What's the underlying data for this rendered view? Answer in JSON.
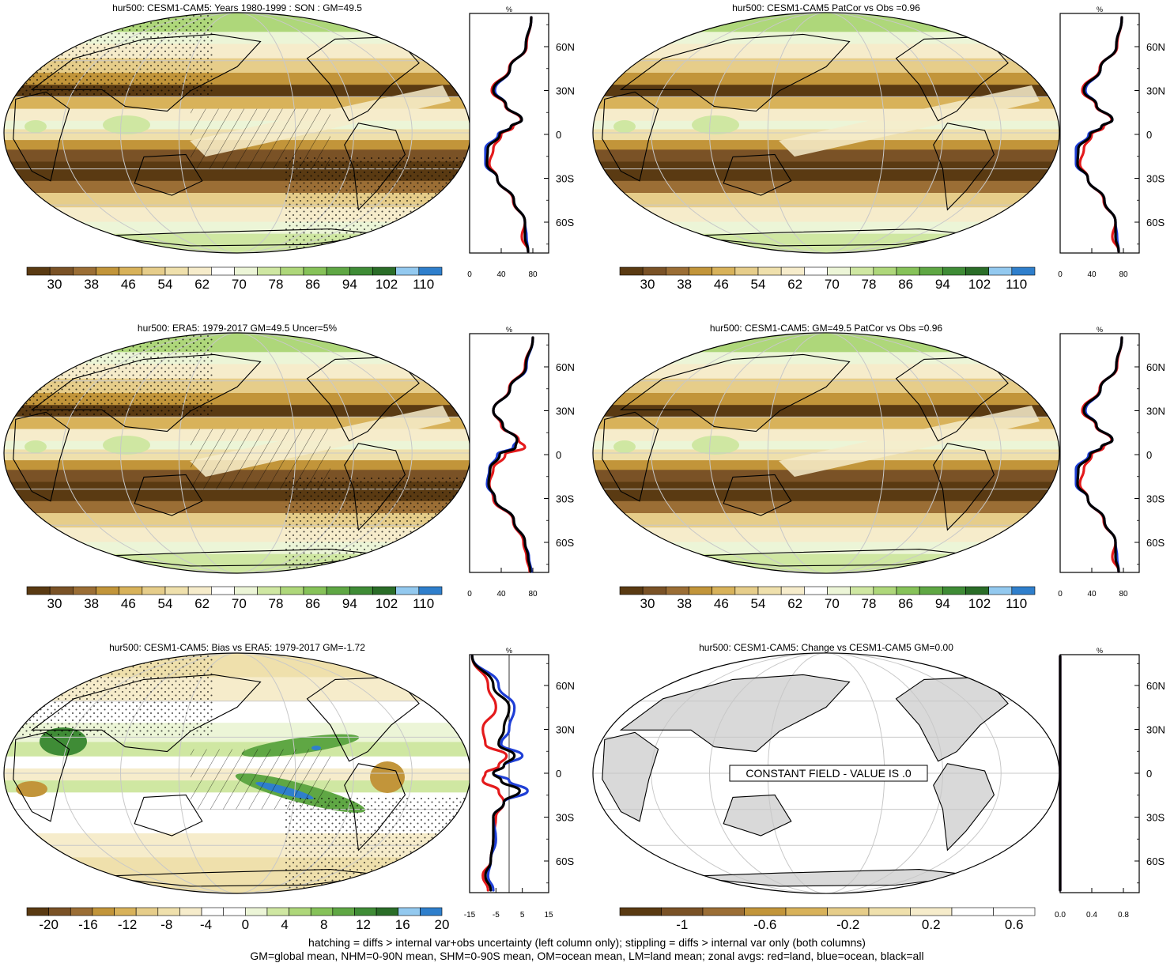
{
  "colors": {
    "abs_scale": [
      "#5a3a12",
      "#7a5226",
      "#9b6e35",
      "#c2953a",
      "#d8b25a",
      "#e6cd8a",
      "#efe0ac",
      "#f6eccb",
      "#ffffff",
      "#ecf5d7",
      "#cfe7a2",
      "#aed77a",
      "#86c259",
      "#5fa744",
      "#3f8c36",
      "#2a6d28",
      "#93c9ef",
      "#2f7fcc"
    ],
    "diff_scale": [
      "#5a3a12",
      "#7a5226",
      "#9b6e35",
      "#c2953a",
      "#d8b25a",
      "#e6cd8a",
      "#efe0ac",
      "#f6eccb",
      "#ffffff",
      "#ffffff",
      "#ecf5d7",
      "#cfe7a2",
      "#aed77a",
      "#86c259",
      "#5fa744",
      "#3f8c36",
      "#2a6d28",
      "#93c9ef",
      "#2f7fcc"
    ],
    "change_scale": [
      "#5a3a12",
      "#7a5226",
      "#9b6e35",
      "#c2953a",
      "#d8b25a",
      "#e6cd8a",
      "#efe0ac",
      "#f6eccb",
      "#ffffff",
      "#ffffff"
    ],
    "land_line": "#e41a1c",
    "ocean_line": "#1f3fd6",
    "all_line": "#000000",
    "land_fill": "#d9d9d9",
    "coast": "#000000"
  },
  "panels": [
    {
      "title": "hur500: CESM1-CAM5: Years 1980-1999 : SON : GM=49.5",
      "type": "abs",
      "colorbar_labels": [
        "30",
        "38",
        "46",
        "54",
        "62",
        "70",
        "78",
        "86",
        "94",
        "102",
        "110"
      ],
      "profile": {
        "unit": "%",
        "xticks": [
          "0",
          "40",
          "80"
        ],
        "xrange": [
          0,
          100
        ],
        "lat_labels": [
          "60N",
          "30N",
          "0",
          "30S",
          "60S"
        ]
      }
    },
    {
      "title": "hur500: CESM1-CAM5 PatCor vs Obs =0.96",
      "type": "abs",
      "colorbar_labels": [
        "30",
        "38",
        "46",
        "54",
        "62",
        "70",
        "78",
        "86",
        "94",
        "102",
        "110"
      ],
      "profile": {
        "unit": "%",
        "xticks": [
          "0",
          "40",
          "80"
        ],
        "xrange": [
          0,
          100
        ],
        "lat_labels": [
          "60N",
          "30N",
          "0",
          "30S",
          "60S"
        ]
      }
    },
    {
      "title": "hur500: ERA5: 1979-2017 GM=49.5 Uncer=5%",
      "type": "abs",
      "colorbar_labels": [
        "30",
        "38",
        "46",
        "54",
        "62",
        "70",
        "78",
        "86",
        "94",
        "102",
        "110"
      ],
      "profile": {
        "unit": "%",
        "xticks": [
          "0",
          "40",
          "80"
        ],
        "xrange": [
          0,
          100
        ],
        "lat_labels": [
          "60N",
          "30N",
          "0",
          "30S",
          "60S"
        ]
      }
    },
    {
      "title": "hur500: CESM1-CAM5: GM=49.5 PatCor vs Obs =0.96",
      "type": "abs",
      "colorbar_labels": [
        "30",
        "38",
        "46",
        "54",
        "62",
        "70",
        "78",
        "86",
        "94",
        "102",
        "110"
      ],
      "profile": {
        "unit": "%",
        "xticks": [
          "0",
          "40",
          "80"
        ],
        "xrange": [
          0,
          100
        ],
        "lat_labels": [
          "60N",
          "30N",
          "0",
          "30S",
          "60S"
        ]
      }
    },
    {
      "title": "hur500: CESM1-CAM5: Bias vs ERA5: 1979-2017  GM=-1.72",
      "type": "diff",
      "colorbar_labels": [
        "-20",
        "-16",
        "-12",
        "-8",
        "-4",
        "0",
        "4",
        "8",
        "12",
        "16",
        "20"
      ],
      "profile": {
        "unit": "%",
        "xticks": [
          "-15",
          "-5",
          "5",
          "15"
        ],
        "xrange": [
          -15,
          15
        ],
        "lat_labels": [
          "60N",
          "30N",
          "0",
          "30S",
          "60S"
        ]
      }
    },
    {
      "title": "hur500: CESM1-CAM5: Change vs CESM1-CAM5 GM=0.00",
      "type": "change",
      "annotation": "CONSTANT FIELD - VALUE IS .0",
      "colorbar_labels": [
        "-1",
        "-0.6",
        "-0.2",
        "0.2",
        "0.6"
      ],
      "profile": {
        "unit": "%",
        "xticks": [
          "0.0",
          "0.4",
          "0.8"
        ],
        "xrange": [
          0,
          1
        ],
        "lat_labels": [
          "60N",
          "30N",
          "0",
          "30S",
          "60S"
        ]
      }
    }
  ],
  "chart_data": [
    {
      "type": "line",
      "title": "hur500: CESM1-CAM5: Years 1980-1999 : SON : GM=49.5",
      "xlabel": "%",
      "xlim": [
        0,
        100
      ],
      "ylim": [
        -90,
        90
      ],
      "y_lat": [
        80,
        60,
        45,
        30,
        20,
        10,
        5,
        0,
        -10,
        -20,
        -30,
        -45,
        -60,
        -70,
        -80
      ],
      "series": [
        {
          "name": "land",
          "values": [
            78,
            72,
            50,
            28,
            45,
            65,
            55,
            40,
            30,
            25,
            35,
            55,
            70,
            66,
            74
          ]
        },
        {
          "name": "ocean",
          "values": [
            78,
            71,
            51,
            32,
            46,
            66,
            52,
            36,
            20,
            20,
            35,
            56,
            70,
            72,
            74
          ]
        },
        {
          "name": "all",
          "values": [
            78,
            71,
            51,
            30,
            46,
            66,
            52,
            38,
            23,
            22,
            35,
            56,
            70,
            70,
            74
          ]
        }
      ]
    },
    {
      "type": "line",
      "title": "hur500: CESM1-CAM5 PatCor vs Obs =0.96",
      "xlabel": "%",
      "xlim": [
        0,
        100
      ],
      "ylim": [
        -90,
        90
      ],
      "y_lat": [
        80,
        60,
        45,
        30,
        20,
        10,
        5,
        0,
        -10,
        -20,
        -30,
        -45,
        -60,
        -70,
        -80
      ],
      "series": [
        {
          "name": "land",
          "values": [
            78,
            72,
            50,
            28,
            45,
            65,
            55,
            40,
            30,
            25,
            35,
            55,
            70,
            66,
            74
          ]
        },
        {
          "name": "ocean",
          "values": [
            78,
            71,
            51,
            32,
            46,
            66,
            52,
            36,
            20,
            20,
            35,
            56,
            70,
            72,
            74
          ]
        },
        {
          "name": "all",
          "values": [
            78,
            71,
            51,
            30,
            46,
            66,
            52,
            38,
            23,
            22,
            35,
            56,
            70,
            70,
            74
          ]
        }
      ]
    },
    {
      "type": "line",
      "title": "hur500: ERA5: 1979-2017 GM=49.5 Uncer=5%",
      "xlabel": "%",
      "xlim": [
        0,
        100
      ],
      "ylim": [
        -90,
        90
      ],
      "y_lat": [
        80,
        60,
        45,
        30,
        20,
        10,
        5,
        0,
        -10,
        -20,
        -30,
        -45,
        -60,
        -70,
        -80
      ],
      "series": [
        {
          "name": "land",
          "values": [
            80,
            70,
            50,
            30,
            40,
            62,
            70,
            45,
            30,
            25,
            30,
            55,
            68,
            72,
            76
          ]
        },
        {
          "name": "ocean",
          "values": [
            80,
            72,
            51,
            30,
            42,
            60,
            55,
            35,
            25,
            22,
            32,
            56,
            70,
            75,
            78
          ]
        },
        {
          "name": "all",
          "values": [
            80,
            71,
            51,
            30,
            42,
            60,
            58,
            38,
            26,
            24,
            32,
            56,
            70,
            74,
            77
          ]
        }
      ]
    },
    {
      "type": "line",
      "title": "hur500: CESM1-CAM5: GM=49.5 PatCor vs Obs =0.96",
      "xlabel": "%",
      "xlim": [
        0,
        100
      ],
      "ylim": [
        -90,
        90
      ],
      "y_lat": [
        80,
        60,
        45,
        30,
        20,
        10,
        5,
        0,
        -10,
        -20,
        -30,
        -45,
        -60,
        -70,
        -80
      ],
      "series": [
        {
          "name": "land",
          "values": [
            78,
            72,
            50,
            28,
            45,
            65,
            55,
            40,
            30,
            25,
            35,
            55,
            70,
            66,
            74
          ]
        },
        {
          "name": "ocean",
          "values": [
            78,
            71,
            51,
            32,
            46,
            66,
            52,
            36,
            20,
            20,
            35,
            56,
            70,
            72,
            74
          ]
        },
        {
          "name": "all",
          "values": [
            78,
            71,
            51,
            30,
            46,
            66,
            52,
            38,
            23,
            22,
            35,
            56,
            70,
            70,
            74
          ]
        }
      ]
    },
    {
      "type": "line",
      "title": "hur500: CESM1-CAM5: Bias vs ERA5: 1979-2017  GM=-1.72",
      "xlabel": "%",
      "xlim": [
        -15,
        15
      ],
      "ylim": [
        -90,
        90
      ],
      "y_lat": [
        80,
        60,
        45,
        30,
        20,
        12,
        5,
        0,
        -5,
        -12,
        -20,
        -30,
        -45,
        -60,
        -70,
        -80
      ],
      "series": [
        {
          "name": "land",
          "values": [
            -14,
            -8,
            -5,
            -10,
            -9,
            -1,
            -4,
            -9,
            -10,
            -4,
            -2,
            -5,
            -6,
            -7,
            -10,
            -8
          ]
        },
        {
          "name": "ocean",
          "values": [
            -14,
            -4,
            2,
            0,
            -3,
            5,
            -2,
            -6,
            0,
            7,
            -2,
            -6,
            -5,
            -7,
            -8,
            -6
          ]
        },
        {
          "name": "all",
          "values": [
            -14,
            -6,
            0,
            -2,
            -4,
            2,
            -2,
            -6,
            -3,
            4,
            -2,
            -6,
            -6,
            -7,
            -9,
            -7
          ]
        }
      ]
    },
    {
      "type": "line",
      "title": "hur500: CESM1-CAM5: Change vs CESM1-CAM5 GM=0.00",
      "xlabel": "%",
      "xlim": [
        0,
        1
      ],
      "ylim": [
        -90,
        90
      ],
      "y_lat": [
        80,
        -80
      ],
      "series": [
        {
          "name": "land",
          "values": [
            0,
            0
          ]
        },
        {
          "name": "ocean",
          "values": [
            0,
            0
          ]
        },
        {
          "name": "all",
          "values": [
            0,
            0
          ]
        }
      ]
    }
  ],
  "footer": {
    "line1": "hatching = diffs > internal var+obs uncertainty (left column only); stippling = diffs > internal var only (both columns)",
    "line2": "GM=global mean, NHM=0-90N mean, SHM=0-90S mean, OM=ocean mean, LM=land mean; zonal avgs: red=land, blue=ocean, black=all"
  }
}
